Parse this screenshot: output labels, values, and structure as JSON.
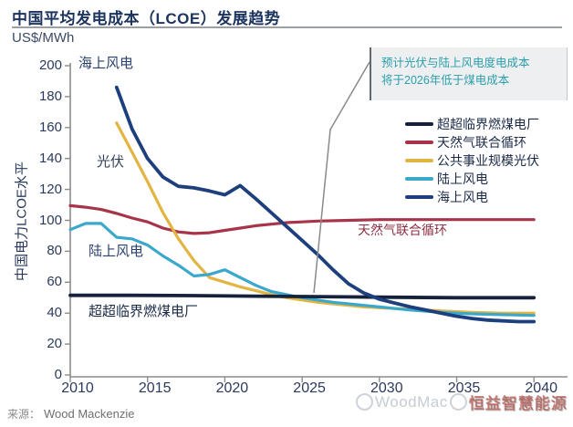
{
  "header": {
    "title": "中国平均发电成本（LCOE）发展趋势",
    "unit": "US$/MWh"
  },
  "annotation": {
    "line1": "预计光伏与陆上风电度电成本",
    "line2": "将于2026年低于煤电成本"
  },
  "plot_labels": {
    "offshore": "海上风电",
    "pv": "光伏",
    "onshore": "陆上风电",
    "coal": "超超临界燃煤电厂",
    "gas": "天然气联合循环"
  },
  "footer": {
    "source_prefix": "来源：",
    "source": "Wood Mackenzie"
  },
  "watermark": {
    "brand": "WoodMac",
    "stamp": "恒益智慧能源"
  },
  "chart_data": {
    "type": "line",
    "title": "中国平均发电成本（LCOE）发展趋势",
    "unit": "US$/MWh",
    "ylabel": "中国电力LCOE水平",
    "xlabel": "",
    "xlim": [
      2010,
      2040
    ],
    "ylim": [
      0,
      200
    ],
    "x_ticks": [
      2010,
      2015,
      2020,
      2025,
      2030,
      2035,
      2040
    ],
    "y_ticks": [
      0,
      20,
      40,
      60,
      80,
      100,
      120,
      140,
      160,
      180,
      200
    ],
    "grid": false,
    "legend_position": "right",
    "annotation_text": "预计光伏与陆上风电度电成本将于2026年低于煤电成本",
    "series": [
      {
        "name": "超超临界燃煤电厂",
        "color": "#16223c",
        "points": [
          [
            2010,
            51.5
          ],
          [
            2014,
            51.5
          ],
          [
            2018,
            51.3
          ],
          [
            2022,
            51
          ],
          [
            2026,
            50.7
          ],
          [
            2030,
            50.3
          ],
          [
            2035,
            50
          ],
          [
            2040,
            50
          ]
        ]
      },
      {
        "name": "天然气联合循环",
        "color": "#a8344a",
        "points": [
          [
            2010,
            109.5
          ],
          [
            2011,
            108.5
          ],
          [
            2012,
            107
          ],
          [
            2013,
            104.5
          ],
          [
            2014,
            101.5
          ],
          [
            2015,
            99
          ],
          [
            2016,
            95
          ],
          [
            2017,
            92.5
          ],
          [
            2018,
            91.5
          ],
          [
            2019,
            92
          ],
          [
            2020,
            93.5
          ],
          [
            2021,
            95
          ],
          [
            2022,
            96.5
          ],
          [
            2023,
            97.5
          ],
          [
            2024,
            98.5
          ],
          [
            2025,
            99
          ],
          [
            2026,
            99.5
          ],
          [
            2028,
            100
          ],
          [
            2030,
            100.5
          ],
          [
            2033,
            100.5
          ],
          [
            2036,
            100.5
          ],
          [
            2040,
            100.5
          ]
        ]
      },
      {
        "name": "公共事业规模光伏",
        "color": "#e2b441",
        "points": [
          [
            2013,
            163
          ],
          [
            2014,
            144
          ],
          [
            2015,
            125
          ],
          [
            2016,
            105
          ],
          [
            2017,
            88
          ],
          [
            2018,
            74
          ],
          [
            2019,
            63
          ],
          [
            2020,
            60
          ],
          [
            2021,
            57
          ],
          [
            2022,
            54.5
          ],
          [
            2023,
            52
          ],
          [
            2024,
            50
          ],
          [
            2025,
            48.5
          ],
          [
            2026,
            47
          ],
          [
            2027,
            46
          ],
          [
            2028,
            45
          ],
          [
            2029,
            44
          ],
          [
            2030,
            43.5
          ],
          [
            2032,
            42.5
          ],
          [
            2034,
            41.5
          ],
          [
            2036,
            40.5
          ],
          [
            2038,
            40
          ],
          [
            2040,
            40
          ]
        ]
      },
      {
        "name": "陆上风电",
        "color": "#3ba7cb",
        "points": [
          [
            2010,
            94
          ],
          [
            2011,
            98
          ],
          [
            2012,
            98
          ],
          [
            2013,
            89
          ],
          [
            2014,
            88
          ],
          [
            2015,
            84
          ],
          [
            2016,
            77
          ],
          [
            2017,
            71
          ],
          [
            2018,
            64
          ],
          [
            2019,
            65
          ],
          [
            2020,
            68
          ],
          [
            2021,
            63
          ],
          [
            2022,
            58
          ],
          [
            2023,
            54
          ],
          [
            2024,
            52
          ],
          [
            2025,
            50
          ],
          [
            2026,
            48.5
          ],
          [
            2027,
            47
          ],
          [
            2028,
            46
          ],
          [
            2029,
            45
          ],
          [
            2030,
            44
          ],
          [
            2032,
            42
          ],
          [
            2034,
            40.5
          ],
          [
            2036,
            39.5
          ],
          [
            2038,
            39
          ],
          [
            2040,
            38.5
          ]
        ]
      },
      {
        "name": "海上风电",
        "color": "#1d3f7d",
        "points": [
          [
            2013,
            186
          ],
          [
            2014,
            159
          ],
          [
            2015,
            140
          ],
          [
            2016,
            128
          ],
          [
            2017,
            122
          ],
          [
            2018,
            121
          ],
          [
            2019,
            119
          ],
          [
            2020,
            116.5
          ],
          [
            2021,
            122.5
          ],
          [
            2022,
            114
          ],
          [
            2023,
            105
          ],
          [
            2024,
            96
          ],
          [
            2025,
            87
          ],
          [
            2026,
            78
          ],
          [
            2027,
            68
          ],
          [
            2028,
            59
          ],
          [
            2029,
            53
          ],
          [
            2030,
            49
          ],
          [
            2031,
            46.5
          ],
          [
            2032,
            44
          ],
          [
            2033,
            42
          ],
          [
            2034,
            40
          ],
          [
            2035,
            38
          ],
          [
            2036,
            36.5
          ],
          [
            2037,
            35.5
          ],
          [
            2038,
            35
          ],
          [
            2039,
            34.5
          ],
          [
            2040,
            34.5
          ]
        ]
      }
    ]
  }
}
